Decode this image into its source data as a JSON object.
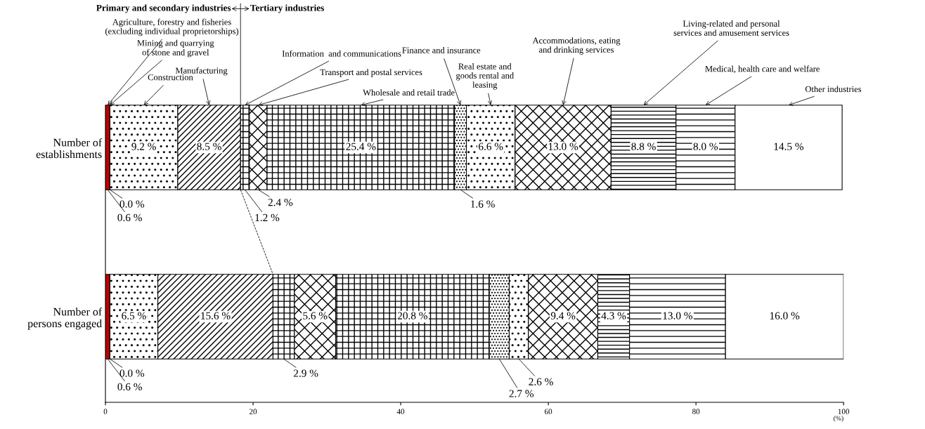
{
  "chart_data": {
    "type": "bar",
    "orientation": "horizontal",
    "stacked": true,
    "categories": [
      "Number of\nestablishments",
      "Number of\npersons engaged"
    ],
    "xlabel": "(%)",
    "xlim": [
      0,
      100
    ],
    "xticks": [
      0,
      20,
      40,
      60,
      80,
      100
    ],
    "grid": false,
    "annotations": [
      "Primary and secondary industries",
      "Tertiary industries"
    ],
    "series": [
      {
        "name": "Agriculture, forestry and fisheries\n(excluding individual proprietorships)",
        "color": "#c00000",
        "values": [
          0.6,
          0.6
        ],
        "value_labels": [
          "0.6 %",
          "0.6 %"
        ]
      },
      {
        "name": "Mining and quarrying\nof stone and gravel",
        "color": "#000000",
        "values": [
          0.0,
          0.0
        ],
        "value_labels": [
          "0.0 %",
          "0.0 %"
        ]
      },
      {
        "name": "Construction",
        "color": "#000000",
        "values": [
          9.2,
          6.5
        ],
        "value_labels": [
          "9.2 %",
          "6.5 %"
        ]
      },
      {
        "name": "Manufacturing",
        "color": "#000000",
        "values": [
          8.5,
          15.6
        ],
        "value_labels": [
          "8.5 %",
          "15.6 %"
        ]
      },
      {
        "name": "Information  and communications",
        "color": "#000000",
        "values": [
          1.2,
          2.9
        ],
        "value_labels": [
          "1.2 %",
          "2.9 %"
        ]
      },
      {
        "name": "Transport and postal services",
        "color": "#000000",
        "values": [
          2.4,
          5.6
        ],
        "value_labels": [
          "2.4 %",
          "5.6 %"
        ]
      },
      {
        "name": "Wholesale and retail trade",
        "color": "#000000",
        "values": [
          25.4,
          20.8
        ],
        "value_labels": [
          "25.4 %",
          "20.8 %"
        ]
      },
      {
        "name": "Finance and insurance",
        "color": "#000000",
        "values": [
          1.6,
          2.7
        ],
        "value_labels": [
          "1.6 %",
          "2.7 %"
        ]
      },
      {
        "name": "Real estate and\ngoods rental and\nleasing",
        "color": "#000000",
        "values": [
          6.6,
          2.6
        ],
        "value_labels": [
          "6.6 %",
          "2.6 %"
        ]
      },
      {
        "name": "Accommodations, eating\nand drinking services",
        "color": "#000000",
        "values": [
          13.0,
          9.4
        ],
        "value_labels": [
          "13.0 %",
          "9.4 %"
        ]
      },
      {
        "name": "Living-related and personal\nservices and amusement services",
        "color": "#000000",
        "values": [
          8.8,
          4.3
        ],
        "value_labels": [
          "8.8 %",
          "4.3 %"
        ]
      },
      {
        "name": "Medical, health care and welfare",
        "color": "#000000",
        "values": [
          8.0,
          13.0
        ],
        "value_labels": [
          "8.0 %",
          "13.0 %"
        ]
      },
      {
        "name": "Other industries",
        "color": "#ffffff",
        "values": [
          14.5,
          16.0
        ],
        "value_labels": [
          "14.5 %",
          "16.0 %"
        ]
      }
    ]
  }
}
